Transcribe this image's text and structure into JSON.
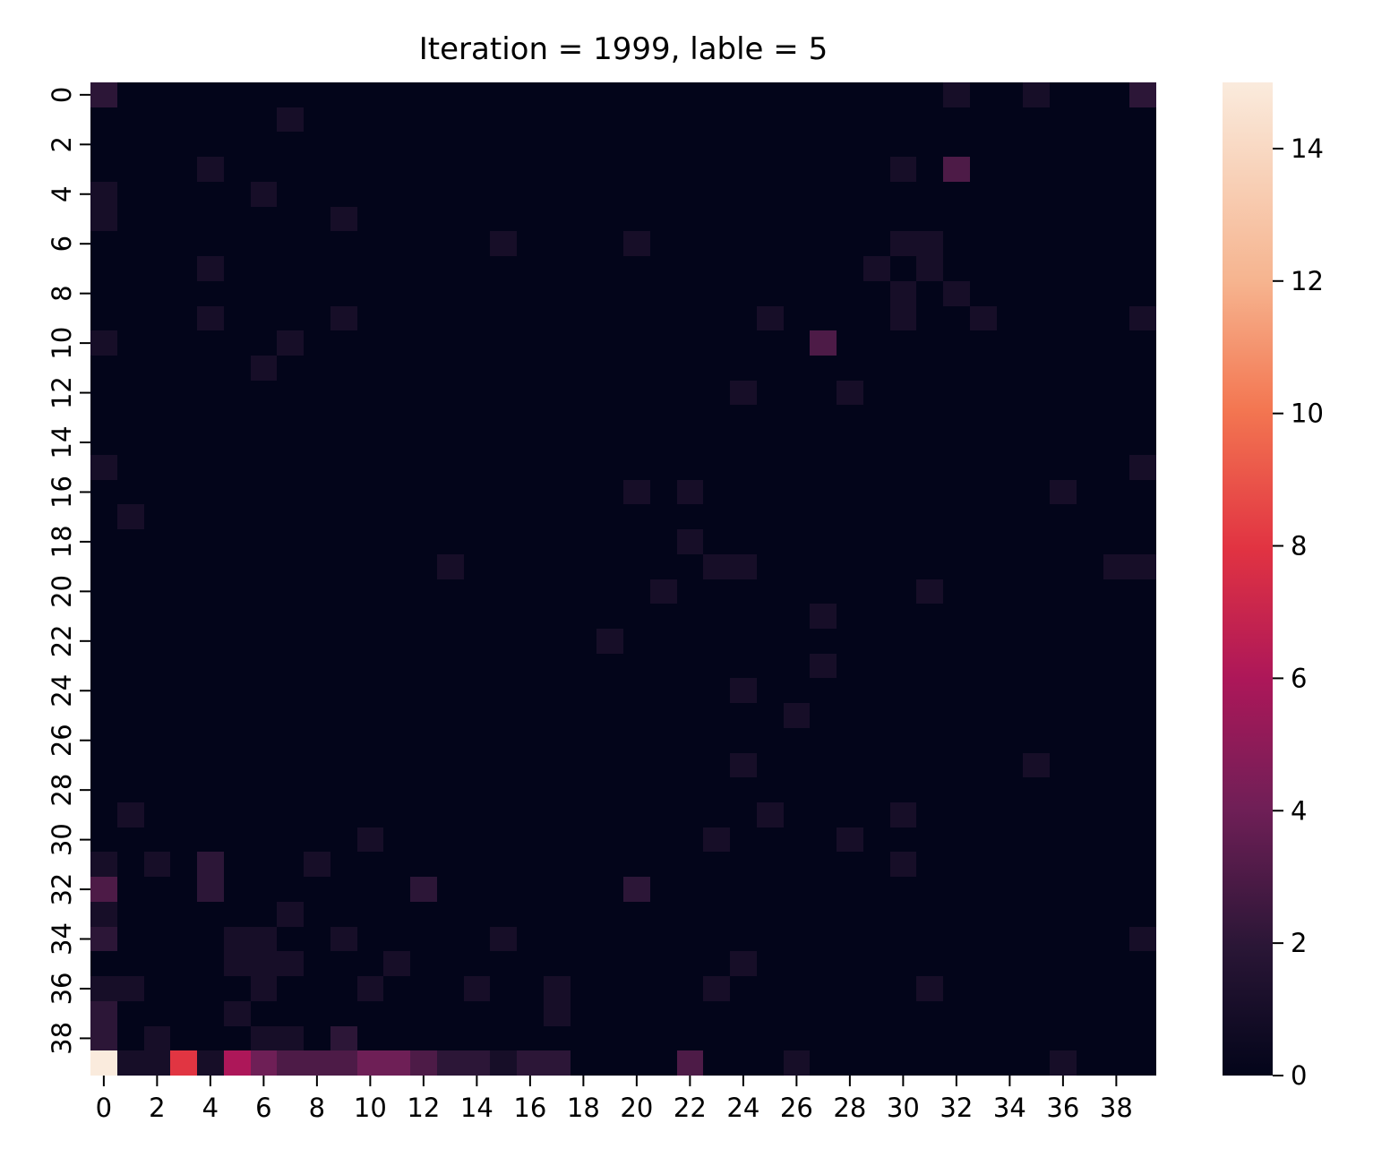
{
  "chart_data": {
    "type": "heatmap",
    "title": "Iteration = 1999, lable = 5",
    "xlabel": "",
    "ylabel": "",
    "n_rows": 40,
    "n_cols": 40,
    "x_ticks": [
      "0",
      "2",
      "4",
      "6",
      "8",
      "10",
      "12",
      "14",
      "16",
      "18",
      "20",
      "22",
      "24",
      "26",
      "28",
      "30",
      "32",
      "34",
      "36",
      "38"
    ],
    "y_ticks": [
      "0",
      "2",
      "4",
      "6",
      "8",
      "10",
      "12",
      "14",
      "16",
      "18",
      "20",
      "22",
      "24",
      "26",
      "28",
      "30",
      "32",
      "34",
      "36",
      "38"
    ],
    "colorbar": {
      "min": 0,
      "max": 15,
      "ticks": [
        "0",
        "2",
        "4",
        "6",
        "8",
        "10",
        "12",
        "14"
      ]
    },
    "colormap": "rocket",
    "default_value": 0,
    "cells": [
      [
        0,
        0,
        2
      ],
      [
        0,
        32,
        1
      ],
      [
        0,
        35,
        1
      ],
      [
        0,
        39,
        2
      ],
      [
        1,
        7,
        1
      ],
      [
        3,
        4,
        1
      ],
      [
        3,
        30,
        1
      ],
      [
        3,
        32,
        3
      ],
      [
        4,
        0,
        1
      ],
      [
        4,
        6,
        1
      ],
      [
        5,
        0,
        1
      ],
      [
        5,
        9,
        1
      ],
      [
        6,
        15,
        1
      ],
      [
        6,
        20,
        1
      ],
      [
        6,
        30,
        1
      ],
      [
        6,
        31,
        1
      ],
      [
        7,
        4,
        1
      ],
      [
        7,
        29,
        1
      ],
      [
        7,
        31,
        1
      ],
      [
        8,
        30,
        1
      ],
      [
        8,
        32,
        1
      ],
      [
        9,
        4,
        1
      ],
      [
        9,
        9,
        1
      ],
      [
        9,
        25,
        1
      ],
      [
        9,
        30,
        1
      ],
      [
        9,
        33,
        1
      ],
      [
        9,
        39,
        1
      ],
      [
        10,
        0,
        1
      ],
      [
        10,
        7,
        1
      ],
      [
        10,
        27,
        3
      ],
      [
        11,
        6,
        1
      ],
      [
        12,
        24,
        1
      ],
      [
        12,
        28,
        1
      ],
      [
        15,
        0,
        1
      ],
      [
        15,
        39,
        1
      ],
      [
        16,
        20,
        1
      ],
      [
        16,
        22,
        1
      ],
      [
        16,
        36,
        1
      ],
      [
        17,
        1,
        1
      ],
      [
        18,
        22,
        1
      ],
      [
        19,
        13,
        1
      ],
      [
        19,
        23,
        1
      ],
      [
        19,
        24,
        1
      ],
      [
        19,
        38,
        1
      ],
      [
        19,
        39,
        1
      ],
      [
        20,
        21,
        1
      ],
      [
        20,
        31,
        1
      ],
      [
        21,
        27,
        1
      ],
      [
        22,
        19,
        1
      ],
      [
        23,
        27,
        1
      ],
      [
        24,
        24,
        1
      ],
      [
        25,
        26,
        1
      ],
      [
        27,
        24,
        1
      ],
      [
        27,
        35,
        1
      ],
      [
        29,
        1,
        1
      ],
      [
        29,
        25,
        1
      ],
      [
        29,
        30,
        1
      ],
      [
        30,
        10,
        1
      ],
      [
        30,
        23,
        1
      ],
      [
        30,
        28,
        1
      ],
      [
        31,
        0,
        1
      ],
      [
        31,
        2,
        1
      ],
      [
        31,
        4,
        2
      ],
      [
        31,
        8,
        1
      ],
      [
        31,
        30,
        1
      ],
      [
        32,
        0,
        3
      ],
      [
        32,
        4,
        2
      ],
      [
        32,
        12,
        2
      ],
      [
        32,
        20,
        2
      ],
      [
        33,
        0,
        1
      ],
      [
        33,
        7,
        1
      ],
      [
        34,
        0,
        2
      ],
      [
        34,
        5,
        1
      ],
      [
        34,
        6,
        1
      ],
      [
        34,
        9,
        1
      ],
      [
        34,
        15,
        1
      ],
      [
        34,
        39,
        1
      ],
      [
        35,
        5,
        1
      ],
      [
        35,
        6,
        1
      ],
      [
        35,
        7,
        1
      ],
      [
        35,
        11,
        1
      ],
      [
        35,
        24,
        1
      ],
      [
        36,
        0,
        1
      ],
      [
        36,
        1,
        1
      ],
      [
        36,
        6,
        1
      ],
      [
        36,
        10,
        1
      ],
      [
        36,
        14,
        1
      ],
      [
        36,
        17,
        1
      ],
      [
        36,
        23,
        1
      ],
      [
        36,
        31,
        1
      ],
      [
        37,
        0,
        2
      ],
      [
        37,
        5,
        1
      ],
      [
        37,
        17,
        1
      ],
      [
        38,
        0,
        2
      ],
      [
        38,
        2,
        1
      ],
      [
        38,
        6,
        1
      ],
      [
        38,
        7,
        1
      ],
      [
        38,
        9,
        2
      ],
      [
        39,
        0,
        15
      ],
      [
        39,
        1,
        1
      ],
      [
        39,
        2,
        1
      ],
      [
        39,
        3,
        8
      ],
      [
        39,
        4,
        1
      ],
      [
        39,
        5,
        6
      ],
      [
        39,
        6,
        4
      ],
      [
        39,
        7,
        3
      ],
      [
        39,
        8,
        3
      ],
      [
        39,
        9,
        3
      ],
      [
        39,
        10,
        4
      ],
      [
        39,
        11,
        4
      ],
      [
        39,
        12,
        3
      ],
      [
        39,
        13,
        2
      ],
      [
        39,
        14,
        2
      ],
      [
        39,
        15,
        1
      ],
      [
        39,
        16,
        2
      ],
      [
        39,
        17,
        2
      ],
      [
        39,
        22,
        3
      ],
      [
        39,
        26,
        1
      ],
      [
        39,
        36,
        1
      ]
    ]
  }
}
